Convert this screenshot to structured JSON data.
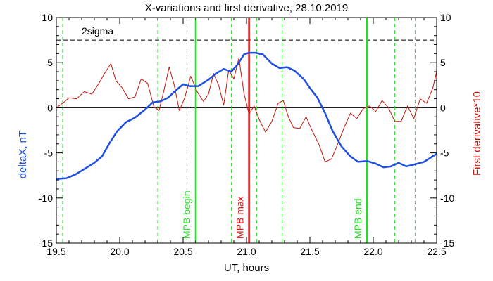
{
  "chart_data": {
    "type": "line",
    "title": "X-variations and first derivative, 28.10.2019",
    "xlabel": "UT, hours",
    "ylabel_left": "deltaX, nT",
    "ylabel_right": "First derivative*10",
    "xlim": [
      19.5,
      22.5
    ],
    "ylim_left": [
      -15,
      10
    ],
    "ylim_right": [
      -15,
      10
    ],
    "xticks": [
      19.5,
      20.0,
      20.5,
      21.0,
      21.5,
      22.0,
      22.5
    ],
    "xtick_labels": [
      "19.5",
      "20.0",
      "20.5",
      "21.0",
      "21.5",
      "22.0",
      "22.5"
    ],
    "yticks": [
      -15,
      -10,
      -5,
      0,
      5,
      10
    ],
    "ytick_labels": [
      "-15",
      "-10",
      "-5",
      "0",
      "5",
      "10"
    ],
    "sigma_label": "2sigma",
    "sigma_value": 7.5,
    "colors": {
      "deltaX": "#1f4fe0",
      "derivative": "#c0170f",
      "mpb": "#22dd22",
      "max": "#e01010",
      "axis": "#000000"
    },
    "series": [
      {
        "key": "deltaX",
        "x": [
          19.5,
          19.58,
          19.65,
          19.72,
          19.8,
          19.86,
          19.92,
          19.98,
          20.05,
          20.12,
          20.2,
          20.26,
          20.32,
          20.38,
          20.44,
          20.5,
          20.55,
          20.62,
          20.7,
          20.76,
          20.82,
          20.88,
          20.93,
          20.98,
          21.02,
          21.07,
          21.13,
          21.2,
          21.26,
          21.32,
          21.38,
          21.45,
          21.5,
          21.56,
          21.62,
          21.68,
          21.75,
          21.82,
          21.88,
          21.95,
          22.02,
          22.08,
          22.14,
          22.2,
          22.26,
          22.32,
          22.4,
          22.5
        ],
        "y": [
          -7.9,
          -7.8,
          -7.4,
          -6.8,
          -6.1,
          -5.4,
          -3.9,
          -2.6,
          -1.6,
          -1.1,
          -0.2,
          0.6,
          0.7,
          1.1,
          1.9,
          2.6,
          2.4,
          2.4,
          3.1,
          3.8,
          4.3,
          4.0,
          4.8,
          5.9,
          6.1,
          6.1,
          5.9,
          4.9,
          4.4,
          4.5,
          4.1,
          3.2,
          2.2,
          1.1,
          -0.6,
          -2.6,
          -4.3,
          -5.4,
          -6.0,
          -5.9,
          -6.2,
          -6.6,
          -6.5,
          -6.1,
          -6.5,
          -6.3,
          -6.0,
          -5.1
        ]
      },
      {
        "key": "derivative",
        "x": [
          19.5,
          19.55,
          19.6,
          19.66,
          19.72,
          19.78,
          19.84,
          19.88,
          19.93,
          19.97,
          20.02,
          20.07,
          20.12,
          20.17,
          20.22,
          20.27,
          20.31,
          20.35,
          20.39,
          20.43,
          20.47,
          20.51,
          20.56,
          20.61,
          20.66,
          20.7,
          20.74,
          20.78,
          20.82,
          20.86,
          20.9,
          20.94,
          20.98,
          21.02,
          21.06,
          21.1,
          21.15,
          21.2,
          21.25,
          21.29,
          21.33,
          21.37,
          21.42,
          21.47,
          21.52,
          21.57,
          21.62,
          21.67,
          21.72,
          21.77,
          21.82,
          21.87,
          21.92,
          21.97,
          22.02,
          22.07,
          22.12,
          22.17,
          22.22,
          22.27,
          22.32,
          22.37,
          22.42,
          22.47,
          22.5
        ],
        "y": [
          0.0,
          0.5,
          1.1,
          1.0,
          1.8,
          1.5,
          2.8,
          3.8,
          4.9,
          3.0,
          2.2,
          1.0,
          1.2,
          3.2,
          2.7,
          0.1,
          -0.3,
          2.0,
          4.5,
          2.5,
          -0.3,
          1.0,
          3.5,
          1.8,
          0.7,
          1.5,
          3.8,
          2.5,
          0.3,
          4.2,
          3.2,
          5.5,
          1.6,
          -0.7,
          0.2,
          -1.3,
          -2.7,
          -1.5,
          0.5,
          0.8,
          -1.0,
          -2.2,
          -2.3,
          -1.0,
          -2.6,
          -4.0,
          -6.0,
          -5.7,
          -4.0,
          -2.2,
          -0.6,
          -1.2,
          -0.1,
          0.2,
          -0.4,
          0.8,
          0.0,
          -1.5,
          -1.5,
          0.2,
          -1.2,
          1.0,
          0.5,
          2.2,
          4.0
        ]
      }
    ],
    "vlines": [
      {
        "x": 19.55,
        "kind": "dashed"
      },
      {
        "x": 20.3,
        "kind": "dashed"
      },
      {
        "x": 20.53,
        "kind": "dashed"
      },
      {
        "x": 20.88,
        "kind": "dashed"
      },
      {
        "x": 21.08,
        "kind": "dashed"
      },
      {
        "x": 21.28,
        "kind": "dashed"
      },
      {
        "x": 22.17,
        "kind": "dashed"
      },
      {
        "x": 22.33,
        "kind": "dashed"
      },
      {
        "x": 20.6,
        "kind": "mpb",
        "label": "MPB begin"
      },
      {
        "x": 21.02,
        "kind": "max",
        "label": "MPB max"
      },
      {
        "x": 21.95,
        "kind": "mpb",
        "label": "MPB end"
      }
    ]
  }
}
